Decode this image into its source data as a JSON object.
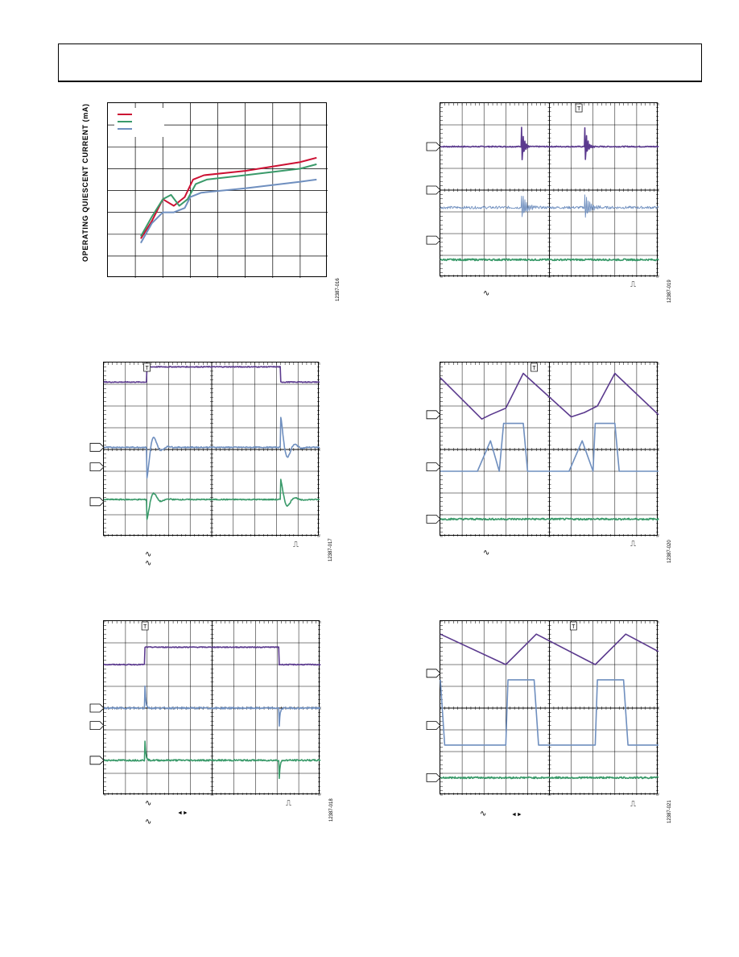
{
  "header": {},
  "colors": {
    "purple": "#5b3a8e",
    "blue": "#6f8fbf",
    "green": "#3a9a6a",
    "red": "#cc1133",
    "grid": "#000000"
  },
  "figures": [
    {
      "id": "fig16",
      "code": "12387-016",
      "ylabel": "OPERATING QUIESCENT CURRENT (mA)",
      "legend": [
        "",
        "",
        ""
      ],
      "chart_data": {
        "type": "line",
        "grid": true,
        "legend_placement": "top-left",
        "x_divisions": 8,
        "y_divisions": 8,
        "series": [
          {
            "color": "red",
            "points": [
              [
                1.2,
                1.8
              ],
              [
                1.6,
                2.6
              ],
              [
                2.0,
                3.6
              ],
              [
                2.4,
                3.3
              ],
              [
                2.8,
                3.7
              ],
              [
                3.1,
                4.5
              ],
              [
                3.5,
                4.7
              ],
              [
                5,
                4.9
              ],
              [
                7,
                5.3
              ],
              [
                7.6,
                5.5
              ]
            ]
          },
          {
            "color": "green",
            "points": [
              [
                1.2,
                1.9
              ],
              [
                1.6,
                2.8
              ],
              [
                2.0,
                3.6
              ],
              [
                2.3,
                3.8
              ],
              [
                2.6,
                3.3
              ],
              [
                2.9,
                3.6
              ],
              [
                3.2,
                4.3
              ],
              [
                3.6,
                4.5
              ],
              [
                5,
                4.7
              ],
              [
                7,
                5.0
              ],
              [
                7.6,
                5.2
              ]
            ]
          },
          {
            "color": "blue",
            "points": [
              [
                1.2,
                1.6
              ],
              [
                1.6,
                2.5
              ],
              [
                2.0,
                3.0
              ],
              [
                2.4,
                3.0
              ],
              [
                2.8,
                3.2
              ],
              [
                3.0,
                3.7
              ],
              [
                3.4,
                3.9
              ],
              [
                5,
                4.1
              ],
              [
                7,
                4.4
              ],
              [
                7.6,
                4.5
              ]
            ]
          }
        ]
      }
    },
    {
      "id": "fig19",
      "code": "12387-019",
      "trigger": "T",
      "chart_data": {
        "type": "line",
        "grid": true,
        "x_divisions": 10,
        "y_divisions": 8,
        "series": [
          {
            "color": "purple",
            "kind": "flat_spikes",
            "level": 6.0,
            "spikes": [
              3.7,
              6.6
            ],
            "spike_amp": 1.2
          },
          {
            "color": "blue",
            "kind": "ringing",
            "level": 3.2,
            "spikes": [
              3.7,
              6.6
            ],
            "spike_amp": 0.7
          },
          {
            "color": "green",
            "kind": "noise",
            "level": 0.8
          }
        ],
        "channel_markers": [
          6.0,
          4.0,
          1.7
        ]
      }
    },
    {
      "id": "fig17",
      "code": "12387-017",
      "trigger": "T",
      "chart_data": {
        "type": "line",
        "grid": true,
        "x_divisions": 10,
        "y_divisions": 8,
        "series": [
          {
            "color": "purple",
            "kind": "pulse",
            "low": 7.1,
            "high": 7.8,
            "rise": 2.0,
            "fall": 8.2
          },
          {
            "color": "blue",
            "kind": "edge_ring",
            "level": 4.1,
            "edges": [
              2.0,
              8.2
            ],
            "amp": 1.4
          },
          {
            "color": "green",
            "kind": "edge_ring",
            "level": 1.7,
            "edges": [
              2.0,
              8.2
            ],
            "amp": 0.9
          }
        ],
        "channel_markers": [
          4.1,
          3.2,
          1.6
        ]
      }
    },
    {
      "id": "fig20",
      "code": "12387-020",
      "trigger": "T",
      "chart_data": {
        "type": "line",
        "grid": true,
        "x_divisions": 10,
        "y_divisions": 8,
        "series": [
          {
            "color": "purple",
            "kind": "triangle",
            "points": [
              [
                0,
                7.3
              ],
              [
                1.9,
                5.4
              ],
              [
                2.3,
                5.6
              ],
              [
                3.0,
                5.9
              ],
              [
                3.8,
                7.5
              ],
              [
                6.0,
                5.5
              ],
              [
                6.6,
                5.7
              ],
              [
                7.2,
                6.0
              ],
              [
                8.0,
                7.5
              ],
              [
                10,
                5.6
              ]
            ]
          },
          {
            "color": "blue",
            "kind": "square",
            "points": [
              [
                0,
                3.0
              ],
              [
                1.7,
                3.0
              ],
              [
                2.3,
                4.4
              ],
              [
                2.7,
                3.0
              ],
              [
                2.9,
                5.2
              ],
              [
                3.8,
                5.2
              ],
              [
                4.0,
                3.0
              ],
              [
                5.9,
                3.0
              ],
              [
                6.5,
                4.4
              ],
              [
                7.0,
                3.0
              ],
              [
                7.1,
                5.2
              ],
              [
                8.0,
                5.2
              ],
              [
                8.2,
                3.0
              ],
              [
                10,
                3.0
              ]
            ]
          },
          {
            "color": "green",
            "kind": "noise",
            "level": 0.8
          }
        ],
        "channel_markers": [
          5.6,
          3.2,
          0.8
        ]
      }
    },
    {
      "id": "fig18",
      "code": "12387-018",
      "trigger": "T",
      "chart_data": {
        "type": "line",
        "grid": true,
        "x_divisions": 10,
        "y_divisions": 8,
        "series": [
          {
            "color": "purple",
            "kind": "pulse",
            "low": 6.0,
            "high": 6.8,
            "rise": 1.9,
            "fall": 8.1
          },
          {
            "color": "blue",
            "kind": "edge_spike",
            "level": 4.0,
            "edges": [
              1.9,
              8.1
            ],
            "amp": [
              1.0,
              -0.8
            ]
          },
          {
            "color": "green",
            "kind": "edge_spike",
            "level": 1.6,
            "edges": [
              1.9,
              8.1
            ],
            "amp": [
              0.9,
              -0.8
            ]
          }
        ],
        "channel_markers": [
          4.0,
          3.2,
          1.6
        ]
      }
    },
    {
      "id": "fig21",
      "code": "12387-021",
      "trigger": "T",
      "chart_data": {
        "type": "line",
        "grid": true,
        "x_divisions": 10,
        "y_divisions": 8,
        "series": [
          {
            "color": "purple",
            "kind": "triangle",
            "points": [
              [
                0,
                7.4
              ],
              [
                3.0,
                6.0
              ],
              [
                4.4,
                7.4
              ],
              [
                7.1,
                6.0
              ],
              [
                8.5,
                7.4
              ],
              [
                10,
                6.6
              ]
            ]
          },
          {
            "color": "blue",
            "kind": "square",
            "points": [
              [
                0,
                5.3
              ],
              [
                0.2,
                2.3
              ],
              [
                3.0,
                2.3
              ],
              [
                3.1,
                5.3
              ],
              [
                4.3,
                5.3
              ],
              [
                4.5,
                2.3
              ],
              [
                7.1,
                2.3
              ],
              [
                7.2,
                5.3
              ],
              [
                8.4,
                5.3
              ],
              [
                8.6,
                2.3
              ],
              [
                10,
                2.3
              ]
            ]
          },
          {
            "color": "green",
            "kind": "noise",
            "level": 0.8
          }
        ],
        "channel_markers": [
          5.6,
          3.2,
          0.8
        ]
      }
    }
  ]
}
